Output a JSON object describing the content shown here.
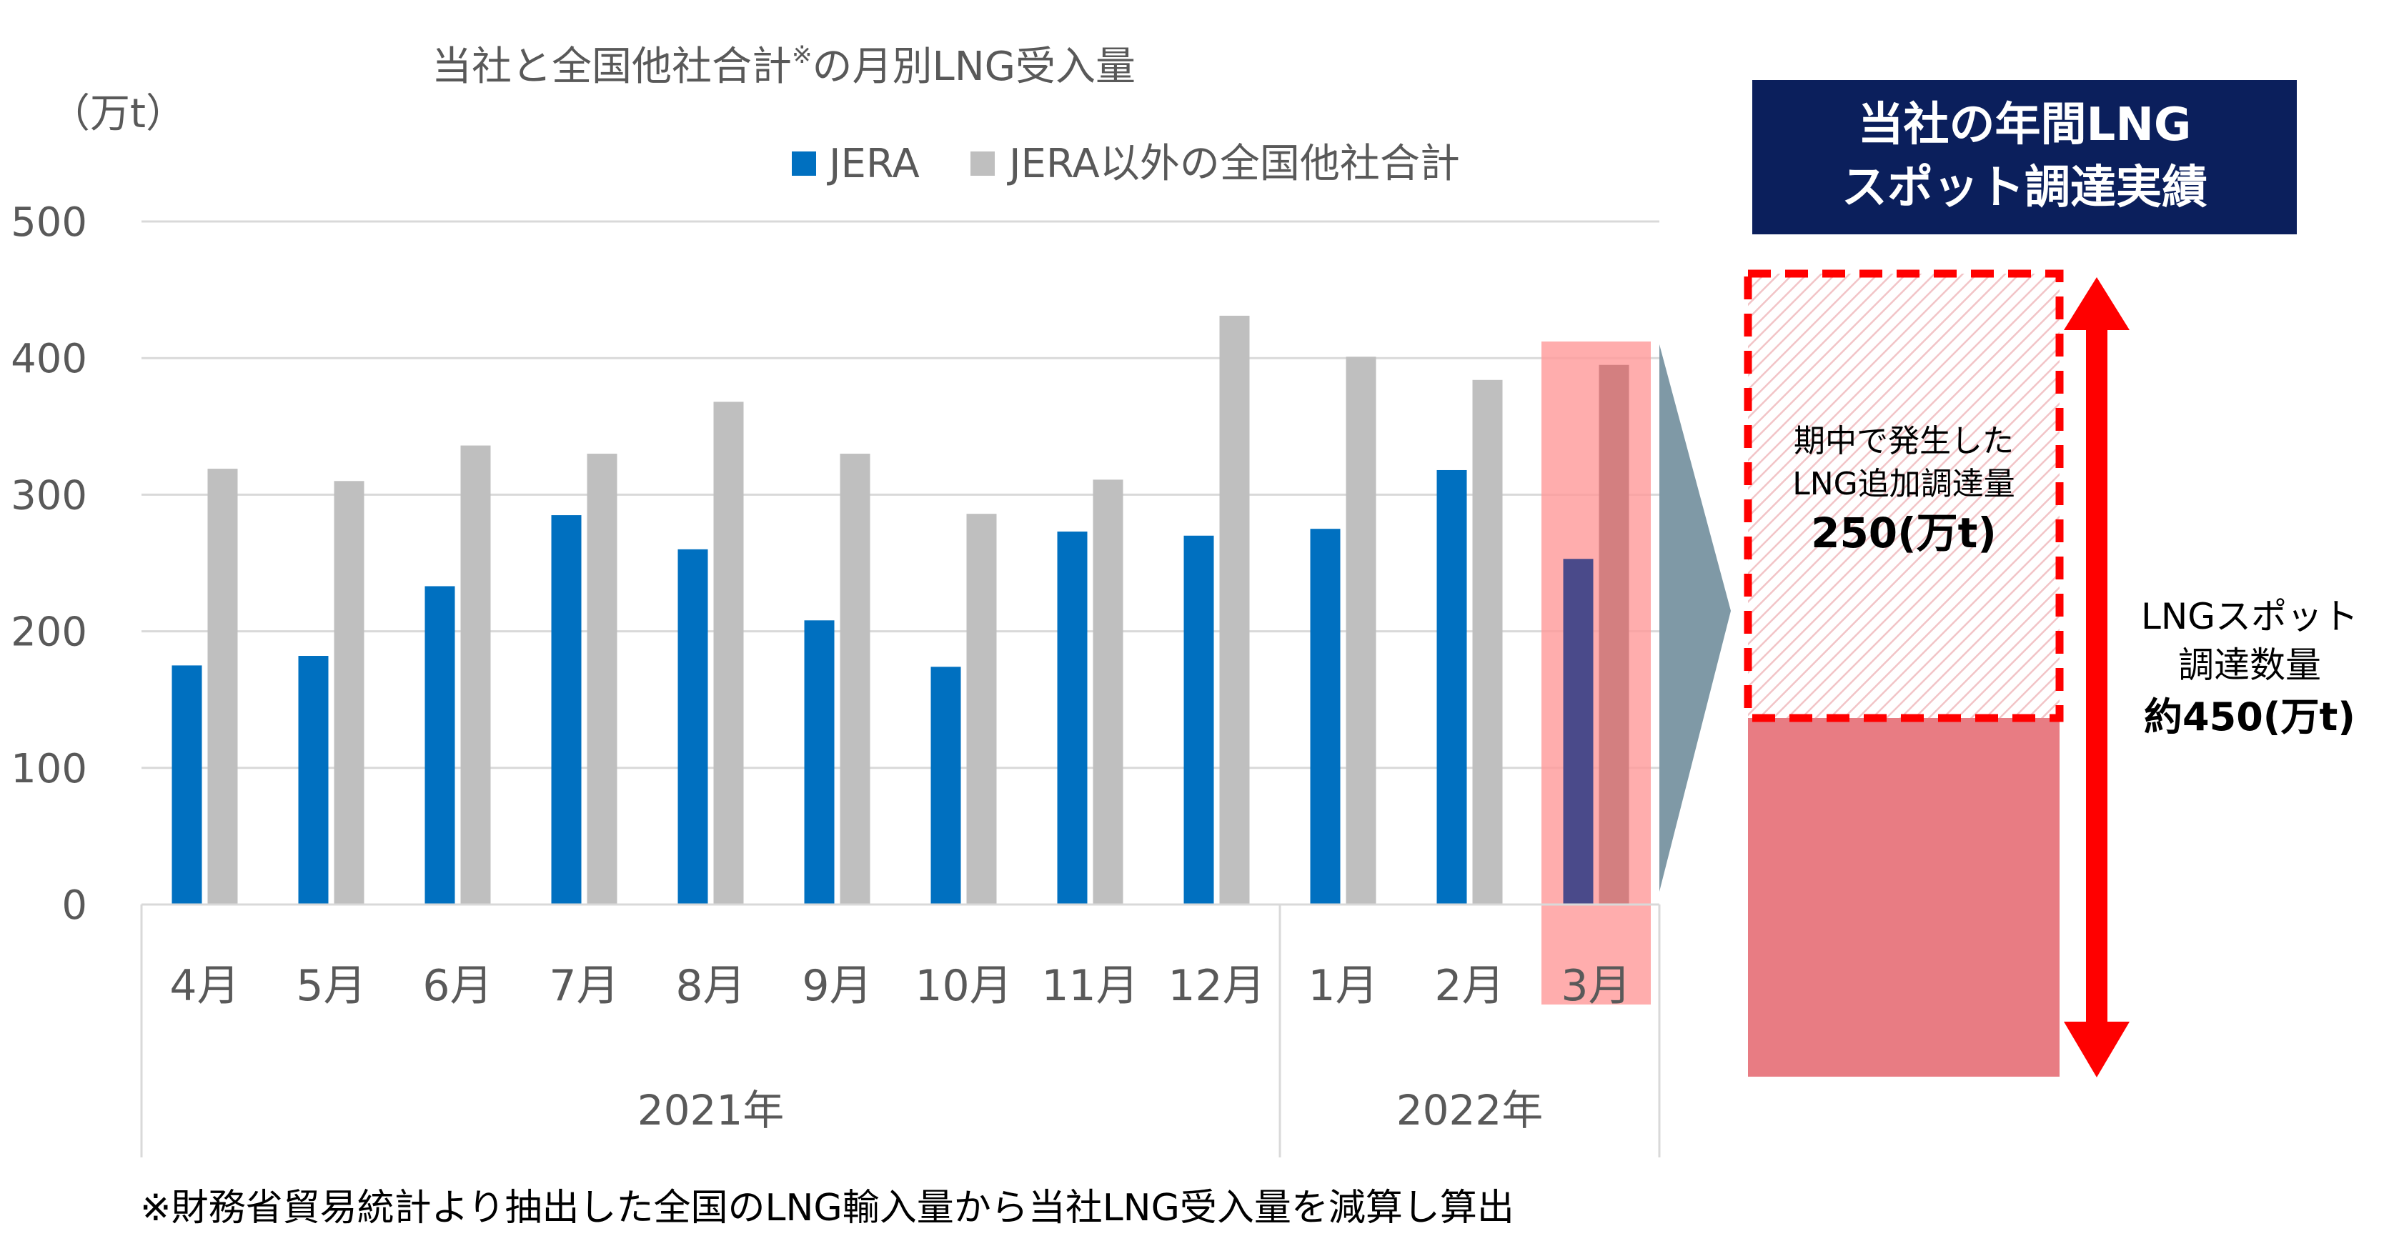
{
  "chart_data": {
    "type": "bar",
    "title": "当社と全国他社合計",
    "title_mark": "※",
    "title_suffix": "の月別LNG受入量",
    "unit": "（万t）",
    "ylim": [
      0,
      500
    ],
    "yticks": [
      "0",
      "100",
      "200",
      "300",
      "400",
      "500"
    ],
    "grid": true,
    "legend_position": "top",
    "categories": [
      "4月",
      "5月",
      "6月",
      "7月",
      "8月",
      "9月",
      "10月",
      "11月",
      "12月",
      "1月",
      "2月",
      "3月"
    ],
    "year_groups": [
      {
        "label": "2021年",
        "count": 9
      },
      {
        "label": "2022年",
        "count": 3
      }
    ],
    "series": [
      {
        "name": "JERA",
        "color": "#0070c0",
        "values": [
          175,
          182,
          233,
          285,
          260,
          208,
          174,
          273,
          270,
          275,
          318,
          253
        ]
      },
      {
        "name": "JERA以外の全国他社合計",
        "color": "#bfbfbf",
        "values": [
          319,
          310,
          336,
          330,
          368,
          330,
          286,
          311,
          431,
          401,
          384,
          395
        ]
      }
    ],
    "highlight": {
      "category": "3月",
      "color": "#ff9999"
    }
  },
  "footnote": "※財務省貿易統計より抽出した全国のLNG輸入量から当社LNG受入量を減算し算出",
  "panel": {
    "title_line1": "当社の年間LNG",
    "title_line2": "スポット調達実績",
    "title_bg": "#0b1f5c",
    "stack_color": "#e87c83",
    "arrow_color": "#ff0000",
    "dashed_line1": "期中で発生した",
    "dashed_line2": "LNG追加調達量",
    "dashed_value": "250(万t)",
    "side_line1": "LNGスポット",
    "side_line2": "調達数量",
    "side_value": "約450(万t)"
  }
}
